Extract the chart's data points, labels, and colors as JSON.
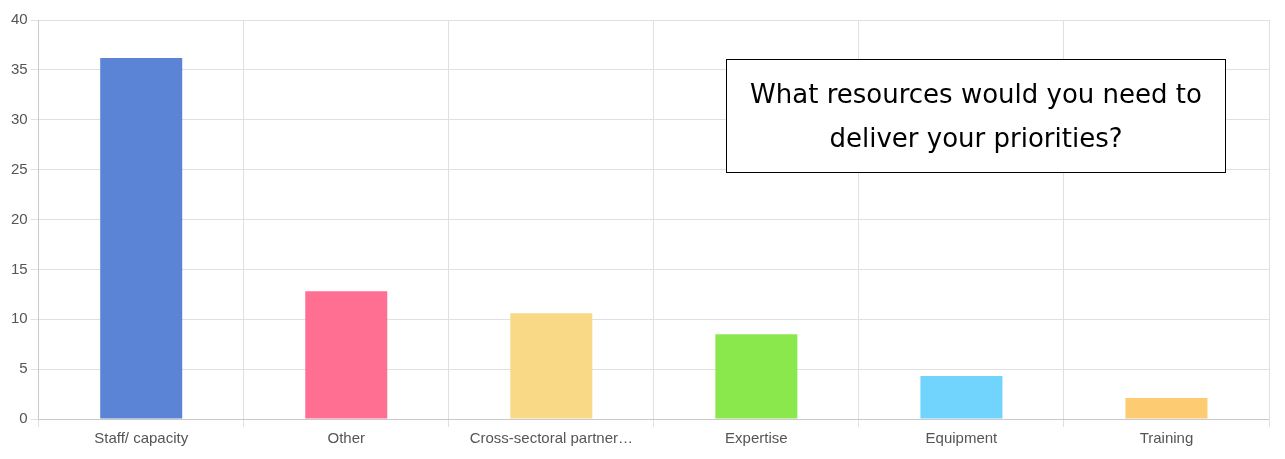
{
  "chart_data": {
    "type": "bar",
    "title": "What resources would you need to deliver your priorities?",
    "categories": [
      "Staff/ capacity",
      "Other",
      "Cross-sectoral partner…",
      "Expertise",
      "Equipment",
      "Training"
    ],
    "values": [
      36.2,
      12.8,
      10.6,
      8.5,
      4.3,
      2.1
    ],
    "colors": [
      "#5b84d6",
      "#ff6f91",
      "#f9d985",
      "#8ae84c",
      "#70d4fc",
      "#fccb72"
    ],
    "ylim": [
      0,
      40
    ],
    "yticks": [
      0,
      5,
      10,
      15,
      20,
      25,
      30,
      35,
      40
    ],
    "grid": true,
    "legend": false
  }
}
